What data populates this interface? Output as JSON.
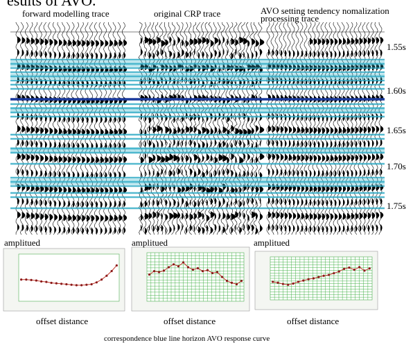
{
  "header": {
    "cut_text": "esults of AVO."
  },
  "panels": [
    {
      "title": "forward modelling trace"
    },
    {
      "title": "original CRP trace"
    },
    {
      "title": "AVO setting tendency nomalization processing trace"
    }
  ],
  "time_labels": [
    "1.55s",
    "1.60s",
    "1.65s",
    "1.70s",
    "1.75s"
  ],
  "curves": [
    {
      "ylabel": "amplitued",
      "xlabel": "offset distance",
      "values": [
        0.46,
        0.46,
        0.45,
        0.44,
        0.42,
        0.41,
        0.39,
        0.38,
        0.37,
        0.36,
        0.35,
        0.34,
        0.34,
        0.35,
        0.36,
        0.4,
        0.46,
        0.54,
        0.64,
        0.76
      ]
    },
    {
      "ylabel": "amplitued",
      "xlabel": "offset distance",
      "values": [
        0.55,
        0.62,
        0.6,
        0.63,
        0.7,
        0.76,
        0.72,
        0.8,
        0.7,
        0.65,
        0.68,
        0.62,
        0.64,
        0.58,
        0.6,
        0.5,
        0.42,
        0.38,
        0.35,
        0.42
      ]
    },
    {
      "ylabel": "amplitued",
      "xlabel": "offset distance",
      "values": [
        0.42,
        0.4,
        0.37,
        0.35,
        0.38,
        0.42,
        0.45,
        0.48,
        0.5,
        0.53,
        0.56,
        0.58,
        0.62,
        0.66,
        0.72,
        0.75,
        0.7,
        0.76,
        0.68,
        0.73
      ]
    }
  ],
  "caption": "correspondence blue line horizon AVO response curve"
}
